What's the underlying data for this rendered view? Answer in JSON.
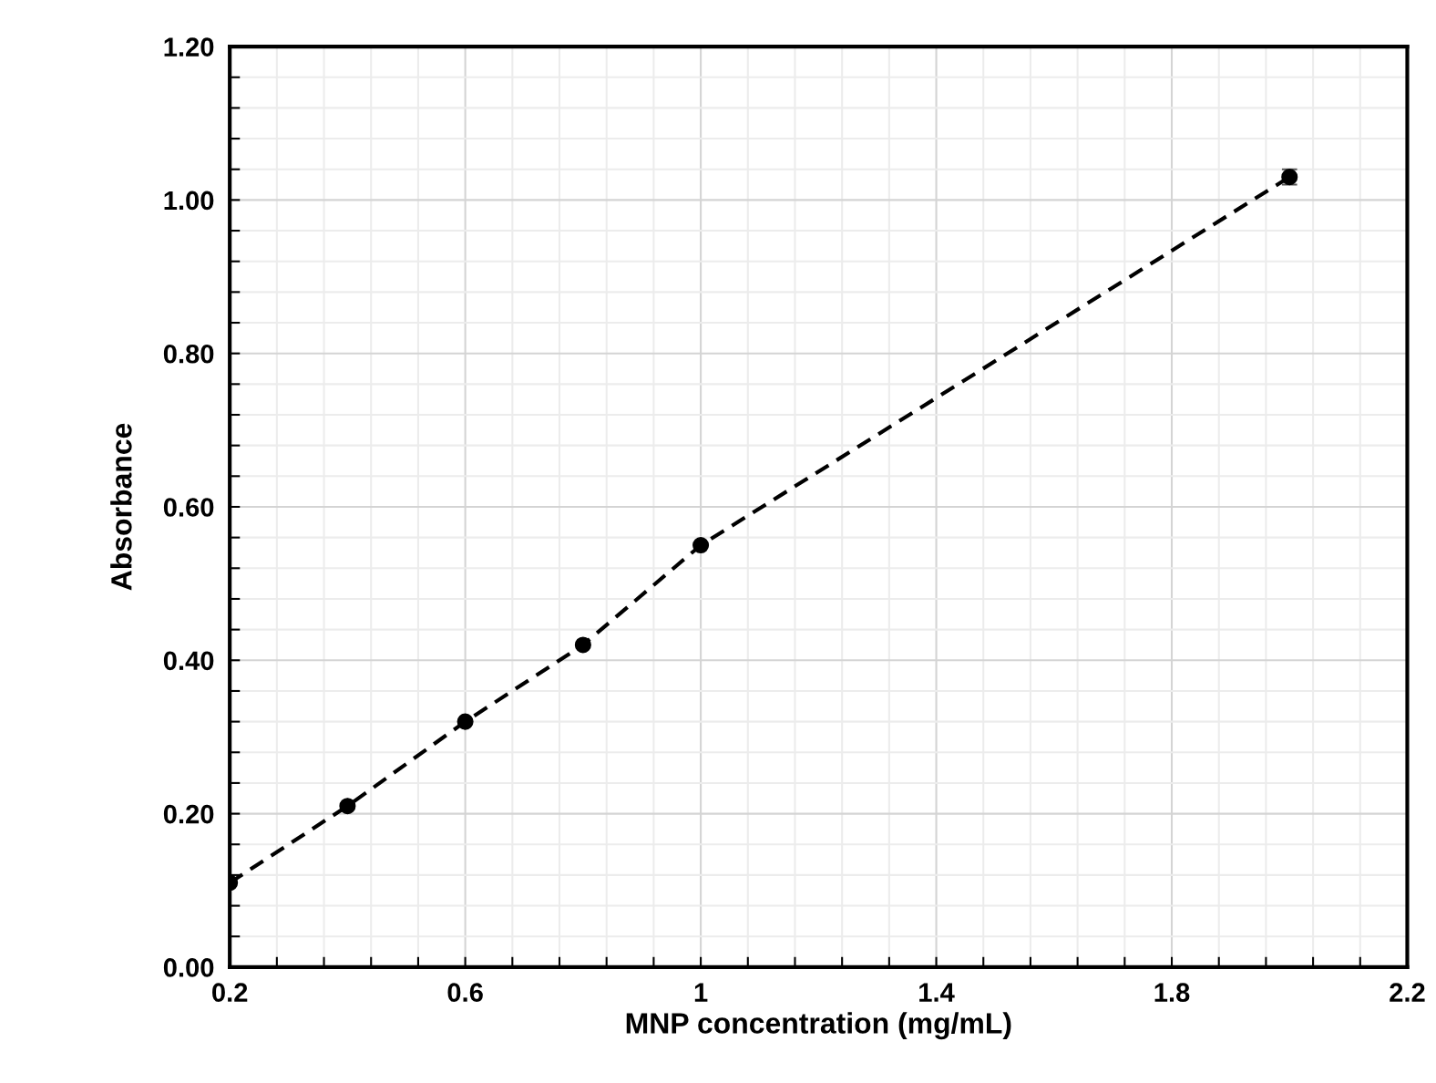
{
  "chart_data": {
    "type": "line",
    "xlabel": "MNP concentration (mg/mL)",
    "ylabel": "Absorbance",
    "x": [
      0.2,
      0.4,
      0.6,
      0.8,
      1.0,
      2.0
    ],
    "series": [
      {
        "color": "#000000",
        "values": [
          0.11,
          0.21,
          0.32,
          0.42,
          0.55,
          1.03
        ],
        "errors": [
          null,
          null,
          null,
          null,
          null,
          0.01
        ]
      }
    ],
    "marker": "circle",
    "line_style": "dashed",
    "grid": true,
    "xlim": [
      0.2,
      2.2
    ],
    "ylim": [
      0,
      1.2
    ],
    "xticks": [
      0.2,
      {
        "value": 0.28,
        "label": null
      },
      {
        "value": 0.36,
        "label": null
      },
      {
        "value": 0.44,
        "label": null
      },
      {
        "value": 0.52,
        "label": null
      },
      0.6,
      {
        "value": 0.68,
        "label": null
      },
      {
        "value": 0.76,
        "label": null
      },
      {
        "value": 0.84,
        "label": null
      },
      {
        "value": 0.92,
        "label": null
      },
      1,
      {
        "value": 1.08,
        "label": null
      },
      {
        "value": 1.16,
        "label": null
      },
      {
        "value": 1.24,
        "label": null
      },
      {
        "value": 1.32,
        "label": null
      },
      1.4,
      {
        "value": 1.48,
        "label": null
      },
      {
        "value": 1.56,
        "label": null
      },
      {
        "value": 1.64,
        "label": null
      },
      {
        "value": 1.72,
        "label": null
      },
      1.8,
      {
        "value": 1.88,
        "label": null
      },
      {
        "value": 1.96,
        "label": null
      },
      {
        "value": 2.04,
        "label": null
      },
      {
        "value": 2.12,
        "label": null
      },
      2.2
    ],
    "yticks": [
      {
        "value": 0,
        "label": "0.00"
      },
      {
        "value": 0.04,
        "label": null
      },
      {
        "value": 0.08,
        "label": null
      },
      {
        "value": 0.12,
        "label": null
      },
      {
        "value": 0.16,
        "label": null
      },
      {
        "value": 0.2,
        "label": "0.20"
      },
      {
        "value": 0.24,
        "label": null
      },
      {
        "value": 0.28,
        "label": null
      },
      {
        "value": 0.32,
        "label": null
      },
      {
        "value": 0.36,
        "label": null
      },
      {
        "value": 0.4,
        "label": "0.40"
      },
      {
        "value": 0.44,
        "label": null
      },
      {
        "value": 0.48,
        "label": null
      },
      {
        "value": 0.52,
        "label": null
      },
      {
        "value": 0.56,
        "label": null
      },
      {
        "value": 0.6,
        "label": "0.60"
      },
      {
        "value": 0.64,
        "label": null
      },
      {
        "value": 0.68,
        "label": null
      },
      {
        "value": 0.72,
        "label": null
      },
      {
        "value": 0.76,
        "label": null
      },
      {
        "value": 0.8,
        "label": "0.80"
      },
      {
        "value": 0.84,
        "label": null
      },
      {
        "value": 0.88,
        "label": null
      },
      {
        "value": 0.92,
        "label": null
      },
      {
        "value": 0.96,
        "label": null
      },
      {
        "value": 1.0,
        "label": "1.00"
      },
      {
        "value": 1.04,
        "label": null
      },
      {
        "value": 1.08,
        "label": null
      },
      {
        "value": 1.12,
        "label": null
      },
      {
        "value": 1.16,
        "label": null
      },
      {
        "value": 1.2,
        "label": "1.20"
      }
    ]
  }
}
